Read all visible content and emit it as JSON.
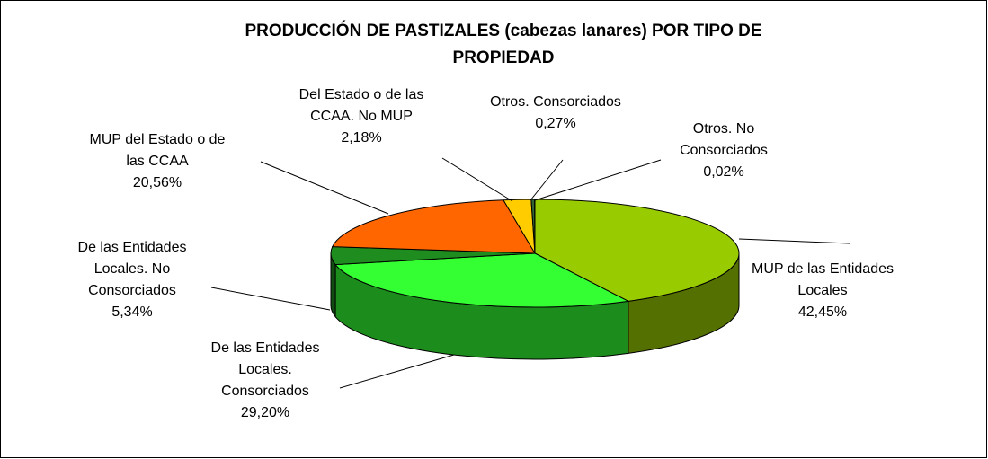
{
  "chart_data": {
    "type": "pie3d",
    "title": "PRODUCCIÓN DE PASTIZALES (cabezas lanares) POR TIPO DE PROPIEDAD",
    "categories": [
      "MUP de las Entidades Locales",
      "De las Entidades Locales. Consorciados",
      "De las Entidades Locales. No Consorciados",
      "MUP del Estado o de las CCAA",
      "Del Estado o de las CCAA. No MUP",
      "Otros. Consorciados",
      "Otros. No Consorciados"
    ],
    "values": [
      42.45,
      29.2,
      5.34,
      20.56,
      2.18,
      0.27,
      0.02
    ],
    "value_labels": [
      "42,45%",
      "29,20%",
      "5,34%",
      "20,56%",
      "2,18%",
      "0,27%",
      "0,02%"
    ],
    "colors": [
      "#99cc00",
      "#33ff33",
      "#1f8c1f",
      "#ff6600",
      "#ffcc00",
      "#336633",
      "#003300"
    ]
  }
}
